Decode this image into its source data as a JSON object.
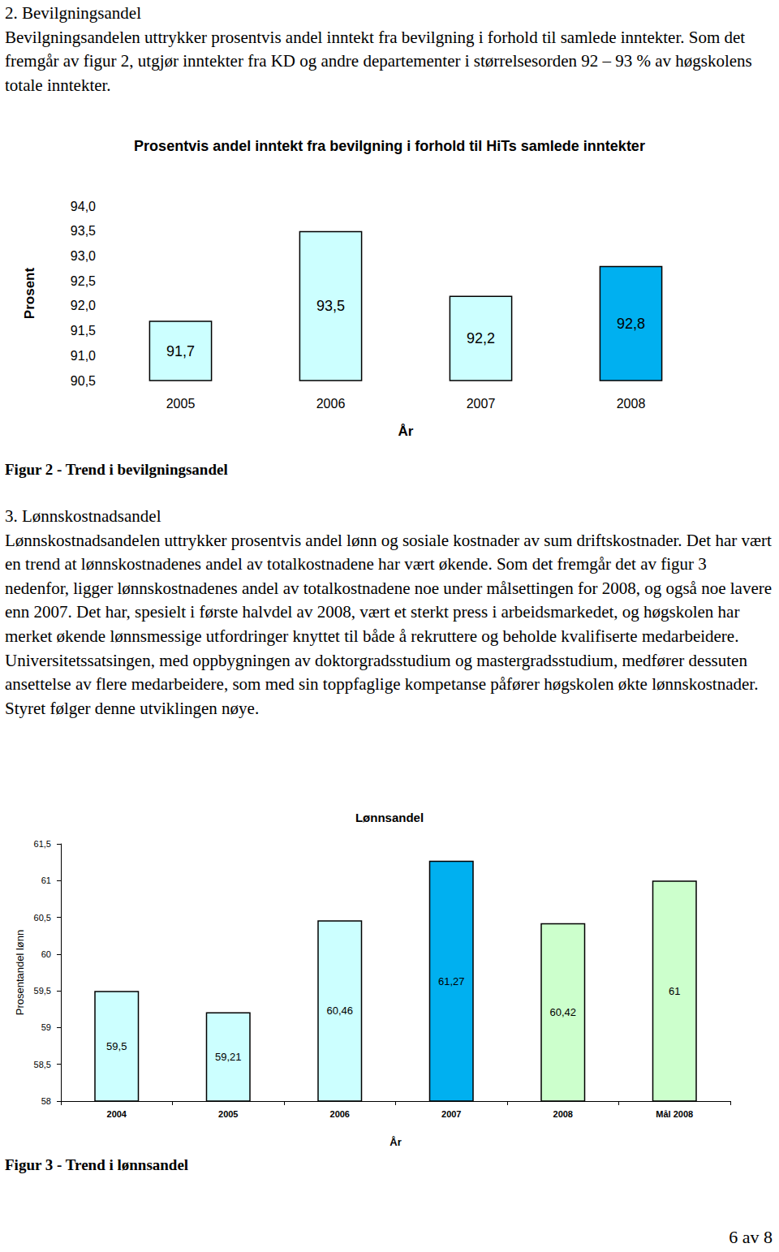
{
  "page": {
    "section_2": {
      "heading": "2. Bevilgningsandel",
      "paragraph": "Bevilgningsandelen uttrykker prosentvis andel inntekt fra bevilgning i forhold til samlede inntekter. Som det fremgår av figur 2, utgjør inntekter fra KD og andre departementer i størrelsesorden 92 – 93 % av høgskolens totale inntekter.",
      "figure_caption": "Figur 2 - Trend i bevilgningsandel"
    },
    "section_3": {
      "heading": "3. Lønnskostnadsandel",
      "paragraph": "Lønnskostnadsandelen uttrykker prosentvis andel lønn og sosiale kostnader av sum driftskostnader. Det har vært en trend at lønnskostnadenes andel av totalkostnadene har vært økende. Som det fremgår det av figur 3 nedenfor, ligger lønnskostnadenes andel av totalkostnadene noe under målsettingen for 2008, og også noe lavere enn 2007. Det har, spesielt i første halvdel av 2008, vært et sterkt press i arbeidsmarkedet, og høgskolen har merket økende lønnsmessige utfordringer knyttet til både å rekruttere og beholde kvalifiserte medarbeidere. Universitetssatsingen, med oppbygningen av doktorgradsstudium og mastergradsstudium, medfører dessuten ansettelse av flere medarbeidere, som med sin toppfaglige kompetanse påfører høgskolen økte lønnskostnader. Styret følger denne utviklingen nøye.",
      "figure_caption": "Figur 3 - Trend i lønnsandel"
    },
    "page_number": "6 av 8"
  },
  "chart_data": [
    {
      "type": "bar",
      "title": "Prosentvis andel inntekt fra bevilgning i forhold til HiTs samlede inntekter",
      "x_label": "År",
      "y_label": "Prosent",
      "categories": [
        "2005",
        "2006",
        "2007",
        "2008"
      ],
      "values": [
        91.7,
        93.5,
        92.2,
        92.8
      ],
      "value_labels": [
        "91,7",
        "93,5",
        "92,2",
        "92,8"
      ],
      "colors": [
        "#ccffff",
        "#ccffff",
        "#ccffff",
        "#00b0f0"
      ],
      "ylim": [
        90.5,
        94.0
      ],
      "yticks": [
        {
          "value": 90.5,
          "label": "90,5"
        },
        {
          "value": 91.0,
          "label": "91,0"
        },
        {
          "value": 91.5,
          "label": "91,5"
        },
        {
          "value": 92.0,
          "label": "92,0"
        },
        {
          "value": 92.5,
          "label": "92,5"
        },
        {
          "value": 93.0,
          "label": "93,0"
        },
        {
          "value": 93.5,
          "label": "93,5"
        },
        {
          "value": 94.0,
          "label": "94,0"
        }
      ],
      "grid": false,
      "data_labels": true
    },
    {
      "type": "bar",
      "title": "Lønnsandel",
      "x_label": "År",
      "y_label": "Prosentandel lønn",
      "categories": [
        "2004",
        "2005",
        "2006",
        "2007",
        "2008",
        "Mål 2008"
      ],
      "values": [
        59.5,
        59.21,
        60.46,
        61.27,
        60.42,
        61
      ],
      "value_labels": [
        "59,5",
        "59,21",
        "60,46",
        "61,27",
        "60,42",
        "61"
      ],
      "colors": [
        "#ccffff",
        "#ccffff",
        "#ccffff",
        "#00b0f0",
        "#ccffcc",
        "#ccffcc"
      ],
      "ylim": [
        58,
        61.5
      ],
      "yticks": [
        58,
        {
          "value": 58.5,
          "label": "58,5"
        },
        59,
        {
          "value": 59.5,
          "label": "59,5"
        },
        60,
        {
          "value": 60.5,
          "label": "60,5"
        },
        61,
        {
          "value": 61.5,
          "label": "61,5"
        }
      ],
      "grid": false,
      "data_labels": true
    }
  ]
}
